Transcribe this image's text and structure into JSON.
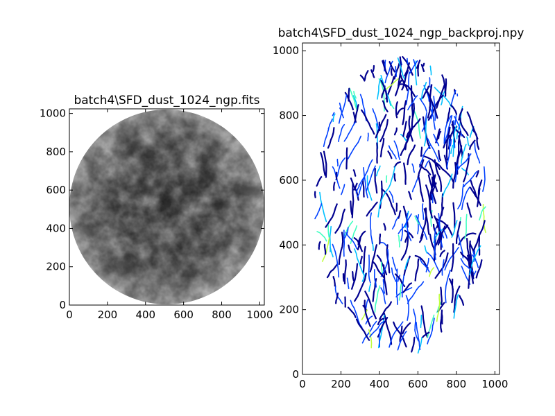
{
  "chart_data": [
    {
      "type": "heatmap",
      "title": "batch4\\SFD_dust_1024_ngp.fits",
      "colormap": "gray",
      "xlim": [
        0,
        1024
      ],
      "ylim": [
        0,
        1024
      ],
      "xticks": [
        0,
        200,
        400,
        600,
        800,
        1000
      ],
      "yticks": [
        0,
        200,
        400,
        600,
        800,
        1000
      ],
      "xlabel": "",
      "ylabel": "",
      "grid": false,
      "content": "circular full-sky dust map",
      "disk": {
        "cx": 512,
        "cy": 512,
        "r": 512
      }
    },
    {
      "type": "line",
      "title": "batch4\\SFD_dust_1024_ngp_backproj.npy",
      "colormap": "jet",
      "xlim": [
        0,
        1024
      ],
      "ylim": [
        0,
        1024
      ],
      "xticks": [
        0,
        200,
        400,
        600,
        800,
        1000
      ],
      "yticks": [
        0,
        200,
        400,
        600,
        800,
        1000
      ],
      "xlabel": "",
      "ylabel": "",
      "grid": false,
      "content": "filamentary back-projection contours inside an elliptical footprint",
      "footprint": {
        "cx": 512,
        "cy": 512,
        "rx": 450,
        "ry": 470
      },
      "colors": [
        "#00008f",
        "#0040ff",
        "#00c0ff",
        "#40ffc0",
        "#c0ff40"
      ]
    }
  ]
}
